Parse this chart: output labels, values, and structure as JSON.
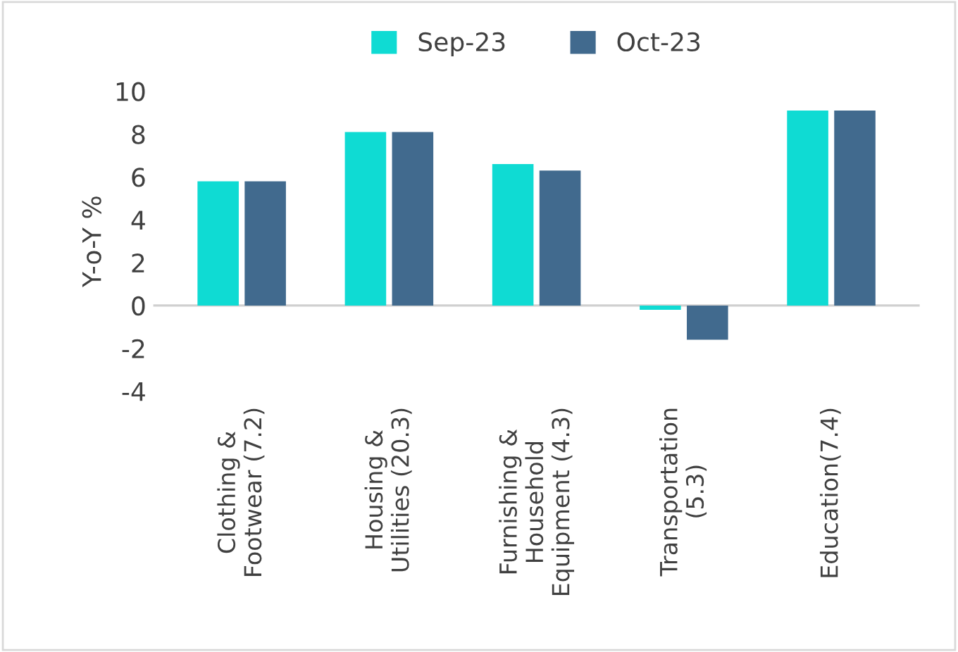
{
  "chart_data": {
    "type": "bar",
    "ylabel": "Y-o-Y %",
    "categories": [
      "Clothing &\nFootwear (7.2)",
      "Housing &\nUtilities (20.3)",
      "Furnishing &\nHousehold\nEquipment (4.3)",
      "Transportation\n(5.3)",
      "Education(7.4)"
    ],
    "series": [
      {
        "name": "Sep-23",
        "color": "#0fdbd3",
        "values": [
          5.8,
          8.1,
          6.6,
          -0.2,
          9.1
        ]
      },
      {
        "name": "Oct-23",
        "color": "#416a8e",
        "values": [
          5.8,
          8.1,
          6.3,
          -1.6,
          9.1
        ]
      }
    ],
    "ylim": [
      -4,
      10
    ],
    "yticks": [
      -4,
      -2,
      0,
      2,
      4,
      6,
      8,
      10
    ],
    "grid": false,
    "ref_lines": [
      {
        "axis": "y",
        "value": 0,
        "color": "#d0d0d0"
      }
    ],
    "legend": "top"
  }
}
